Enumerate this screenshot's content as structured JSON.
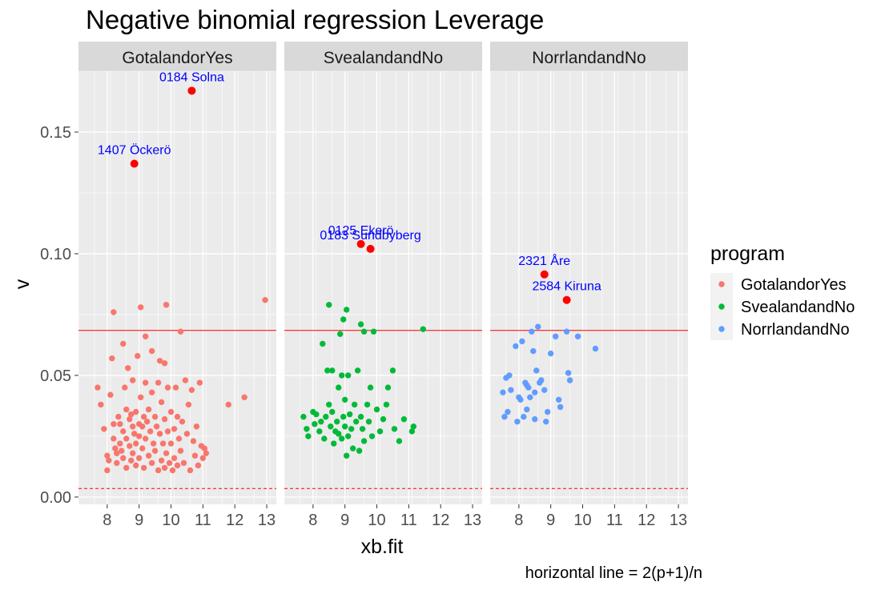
{
  "chart_data": {
    "type": "scatter",
    "title": "Negative binomial regression Leverage",
    "xlabel": "xb.fit",
    "ylabel": "v",
    "caption": "horizontal line = 2(p+1)/n",
    "xlim": [
      7.1,
      13.3
    ],
    "ylim": [
      -0.003,
      0.175
    ],
    "x_ticks": [
      8,
      9,
      10,
      11,
      12,
      13
    ],
    "y_ticks": [
      0.0,
      0.05,
      0.1,
      0.15
    ],
    "y_tick_labels": [
      "0.00",
      "0.05",
      "0.10",
      "0.15"
    ],
    "hline_solid": 0.0685,
    "hline_dashed": 0.0035,
    "grid": true,
    "legend": {
      "title": "program",
      "position": "right",
      "entries": [
        {
          "label": "GotalandorYes",
          "color": "#F8766D"
        },
        {
          "label": "SvealandandNo",
          "color": "#00BA38"
        },
        {
          "label": "NorrlandandNo",
          "color": "#619CFF"
        }
      ]
    },
    "colors": {
      "panel_bg": "#EBEBEB",
      "strip_bg": "#D9D9D9",
      "grid": "#FFFFFF",
      "hline": "#FF0000",
      "highlight": "#FF0000",
      "label_text": "#0000FF"
    },
    "panels": [
      {
        "name": "GotalandorYes",
        "color": "#F8766D",
        "points": [
          [
            7.7,
            0.045
          ],
          [
            7.8,
            0.038
          ],
          [
            7.9,
            0.028
          ],
          [
            8.0,
            0.017
          ],
          [
            8.0,
            0.011
          ],
          [
            8.05,
            0.015
          ],
          [
            8.1,
            0.042
          ],
          [
            8.15,
            0.057
          ],
          [
            8.2,
            0.076
          ],
          [
            8.2,
            0.03
          ],
          [
            8.2,
            0.024
          ],
          [
            8.25,
            0.02
          ],
          [
            8.3,
            0.018
          ],
          [
            8.3,
            0.014
          ],
          [
            8.35,
            0.033
          ],
          [
            8.4,
            0.03
          ],
          [
            8.4,
            0.022
          ],
          [
            8.45,
            0.019
          ],
          [
            8.5,
            0.063
          ],
          [
            8.5,
            0.027
          ],
          [
            8.5,
            0.016
          ],
          [
            8.55,
            0.045
          ],
          [
            8.6,
            0.036
          ],
          [
            8.6,
            0.024
          ],
          [
            8.6,
            0.012
          ],
          [
            8.65,
            0.053
          ],
          [
            8.7,
            0.032
          ],
          [
            8.7,
            0.021
          ],
          [
            8.75,
            0.034
          ],
          [
            8.75,
            0.015
          ],
          [
            8.8,
            0.048
          ],
          [
            8.8,
            0.029
          ],
          [
            8.8,
            0.018
          ],
          [
            8.85,
            0.026
          ],
          [
            8.9,
            0.035
          ],
          [
            8.9,
            0.022
          ],
          [
            8.9,
            0.013
          ],
          [
            8.95,
            0.058
          ],
          [
            9.0,
            0.03
          ],
          [
            9.0,
            0.025
          ],
          [
            9.0,
            0.016
          ],
          [
            9.05,
            0.078
          ],
          [
            9.05,
            0.041
          ],
          [
            9.1,
            0.029
          ],
          [
            9.1,
            0.02
          ],
          [
            9.15,
            0.033
          ],
          [
            9.15,
            0.012
          ],
          [
            9.2,
            0.066
          ],
          [
            9.2,
            0.047
          ],
          [
            9.2,
            0.024
          ],
          [
            9.25,
            0.031
          ],
          [
            9.3,
            0.036
          ],
          [
            9.3,
            0.017
          ],
          [
            9.35,
            0.027
          ],
          [
            9.4,
            0.06
          ],
          [
            9.4,
            0.043
          ],
          [
            9.4,
            0.014
          ],
          [
            9.45,
            0.022
          ],
          [
            9.5,
            0.033
          ],
          [
            9.5,
            0.019
          ],
          [
            9.55,
            0.029
          ],
          [
            9.6,
            0.047
          ],
          [
            9.6,
            0.011
          ],
          [
            9.65,
            0.056
          ],
          [
            9.65,
            0.026
          ],
          [
            9.7,
            0.039
          ],
          [
            9.7,
            0.015
          ],
          [
            9.75,
            0.022
          ],
          [
            9.8,
            0.055
          ],
          [
            9.8,
            0.032
          ],
          [
            9.8,
            0.012
          ],
          [
            9.85,
            0.079
          ],
          [
            9.85,
            0.018
          ],
          [
            9.9,
            0.045
          ],
          [
            9.9,
            0.027
          ],
          [
            9.95,
            0.014
          ],
          [
            10.0,
            0.035
          ],
          [
            10.0,
            0.022
          ],
          [
            10.05,
            0.011
          ],
          [
            10.1,
            0.028
          ],
          [
            10.1,
            0.016
          ],
          [
            10.15,
            0.045
          ],
          [
            10.2,
            0.033
          ],
          [
            10.2,
            0.013
          ],
          [
            10.25,
            0.024
          ],
          [
            10.3,
            0.068
          ],
          [
            10.3,
            0.019
          ],
          [
            10.35,
            0.031
          ],
          [
            10.4,
            0.014
          ],
          [
            10.45,
            0.048
          ],
          [
            10.5,
            0.026
          ],
          [
            10.55,
            0.038
          ],
          [
            10.6,
            0.011
          ],
          [
            10.65,
            0.044
          ],
          [
            10.7,
            0.023
          ],
          [
            10.75,
            0.017
          ],
          [
            10.8,
            0.029
          ],
          [
            10.85,
            0.013
          ],
          [
            10.9,
            0.047
          ],
          [
            10.95,
            0.021
          ],
          [
            11.0,
            0.016
          ],
          [
            11.05,
            0.02
          ],
          [
            11.1,
            0.018
          ],
          [
            11.8,
            0.038
          ],
          [
            12.3,
            0.041
          ],
          [
            12.95,
            0.081
          ]
        ],
        "highlighted": [
          {
            "x": 10.65,
            "y": 0.167,
            "label": "0184 Solna"
          },
          {
            "x": 8.85,
            "y": 0.137,
            "label": "1407 Öckerö"
          }
        ]
      },
      {
        "name": "SvealandandNo",
        "color": "#00BA38",
        "points": [
          [
            7.7,
            0.033
          ],
          [
            7.8,
            0.028
          ],
          [
            7.85,
            0.025
          ],
          [
            8.0,
            0.035
          ],
          [
            8.05,
            0.03
          ],
          [
            8.1,
            0.034
          ],
          [
            8.2,
            0.027
          ],
          [
            8.25,
            0.031
          ],
          [
            8.3,
            0.063
          ],
          [
            8.35,
            0.024
          ],
          [
            8.4,
            0.033
          ],
          [
            8.45,
            0.052
          ],
          [
            8.5,
            0.079
          ],
          [
            8.5,
            0.038
          ],
          [
            8.55,
            0.029
          ],
          [
            8.6,
            0.052
          ],
          [
            8.6,
            0.035
          ],
          [
            8.65,
            0.022
          ],
          [
            8.7,
            0.027
          ],
          [
            8.75,
            0.031
          ],
          [
            8.8,
            0.026
          ],
          [
            8.8,
            0.045
          ],
          [
            8.85,
            0.067
          ],
          [
            8.9,
            0.05
          ],
          [
            8.9,
            0.024
          ],
          [
            8.95,
            0.073
          ],
          [
            8.95,
            0.033
          ],
          [
            9.0,
            0.04
          ],
          [
            9.0,
            0.029
          ],
          [
            9.05,
            0.077
          ],
          [
            9.05,
            0.017
          ],
          [
            9.1,
            0.05
          ],
          [
            9.1,
            0.025
          ],
          [
            9.15,
            0.034
          ],
          [
            9.2,
            0.028
          ],
          [
            9.25,
            0.02
          ],
          [
            9.3,
            0.038
          ],
          [
            9.35,
            0.031
          ],
          [
            9.4,
            0.052
          ],
          [
            9.45,
            0.019
          ],
          [
            9.5,
            0.071
          ],
          [
            9.5,
            0.033
          ],
          [
            9.55,
            0.028
          ],
          [
            9.6,
            0.068
          ],
          [
            9.6,
            0.023
          ],
          [
            9.7,
            0.038
          ],
          [
            9.75,
            0.031
          ],
          [
            9.8,
            0.045
          ],
          [
            9.85,
            0.025
          ],
          [
            9.9,
            0.068
          ],
          [
            10.0,
            0.036
          ],
          [
            10.1,
            0.027
          ],
          [
            10.2,
            0.032
          ],
          [
            10.3,
            0.038
          ],
          [
            10.35,
            0.045
          ],
          [
            10.5,
            0.052
          ],
          [
            10.55,
            0.028
          ],
          [
            10.7,
            0.023
          ],
          [
            10.85,
            0.032
          ],
          [
            11.1,
            0.027
          ],
          [
            11.15,
            0.029
          ],
          [
            11.45,
            0.069
          ]
        ],
        "highlighted": [
          {
            "x": 9.5,
            "y": 0.104,
            "label": "0125 Ekerö"
          },
          {
            "x": 9.8,
            "y": 0.102,
            "label": "0183 Sundbyberg"
          }
        ]
      },
      {
        "name": "NorrlandandNo",
        "color": "#619CFF",
        "points": [
          [
            7.5,
            0.043
          ],
          [
            7.55,
            0.033
          ],
          [
            7.6,
            0.049
          ],
          [
            7.65,
            0.035
          ],
          [
            7.7,
            0.05
          ],
          [
            7.75,
            0.044
          ],
          [
            7.9,
            0.062
          ],
          [
            7.95,
            0.031
          ],
          [
            8.0,
            0.041
          ],
          [
            8.05,
            0.04
          ],
          [
            8.1,
            0.064
          ],
          [
            8.15,
            0.033
          ],
          [
            8.2,
            0.047
          ],
          [
            8.25,
            0.036
          ],
          [
            8.25,
            0.046
          ],
          [
            8.3,
            0.045
          ],
          [
            8.35,
            0.041
          ],
          [
            8.4,
            0.068
          ],
          [
            8.45,
            0.06
          ],
          [
            8.5,
            0.032
          ],
          [
            8.5,
            0.043
          ],
          [
            8.55,
            0.052
          ],
          [
            8.6,
            0.07
          ],
          [
            8.65,
            0.047
          ],
          [
            8.7,
            0.048
          ],
          [
            8.8,
            0.044
          ],
          [
            8.85,
            0.031
          ],
          [
            8.9,
            0.035
          ],
          [
            9.0,
            0.059
          ],
          [
            9.15,
            0.066
          ],
          [
            9.25,
            0.04
          ],
          [
            9.3,
            0.037
          ],
          [
            9.5,
            0.068
          ],
          [
            9.55,
            0.051
          ],
          [
            9.6,
            0.048
          ],
          [
            9.85,
            0.066
          ],
          [
            10.4,
            0.061
          ]
        ],
        "highlighted": [
          {
            "x": 8.8,
            "y": 0.0915,
            "label": "2321 Åre"
          },
          {
            "x": 9.5,
            "y": 0.081,
            "label": "2584 Kiruna"
          }
        ]
      }
    ]
  }
}
